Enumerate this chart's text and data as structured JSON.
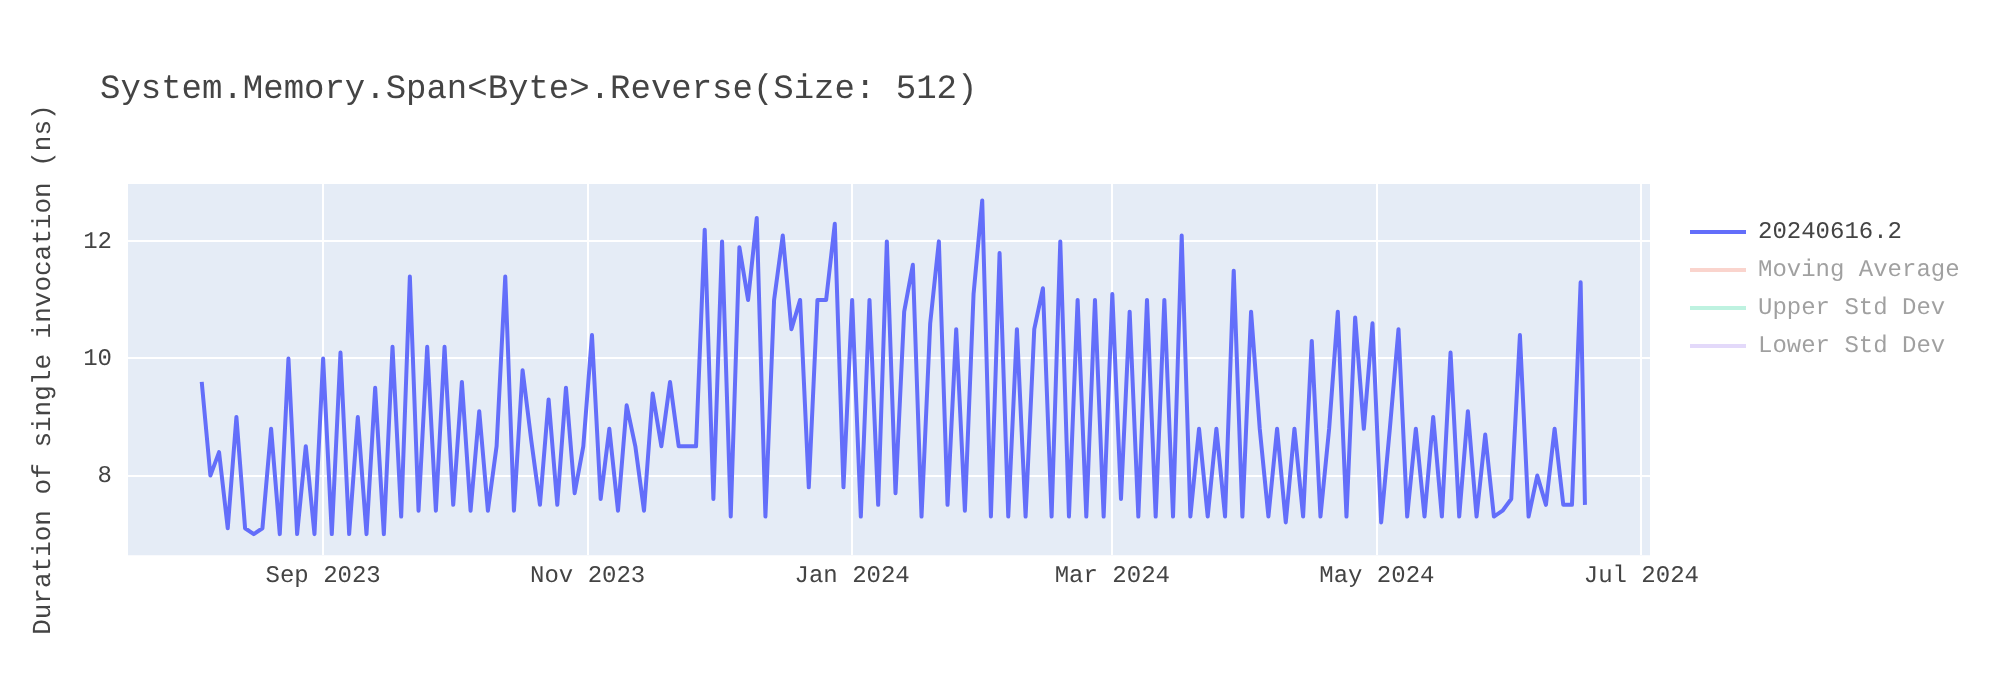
{
  "chart_data": {
    "type": "line",
    "title": "System.Memory.Span<Byte>.Reverse(Size: 512)",
    "ylabel": "Duration of single invocation (ns)",
    "xlim": [
      "2023-07-18",
      "2024-07-03"
    ],
    "xticks": [
      {
        "value": "2023-09-01",
        "label": "Sep 2023"
      },
      {
        "value": "2023-11-01",
        "label": "Nov 2023"
      },
      {
        "value": "2024-01-01",
        "label": "Jan 2024"
      },
      {
        "value": "2024-03-01",
        "label": "Mar 2024"
      },
      {
        "value": "2024-05-01",
        "label": "May 2024"
      },
      {
        "value": "2024-07-01",
        "label": "Jul 2024"
      }
    ],
    "ylim": [
      6.64,
      12.98
    ],
    "yticks": [
      8,
      10,
      12
    ],
    "grid": true,
    "legend": "top right",
    "marker": "none",
    "line_style": "solid",
    "series": [
      {
        "name": "20240616.2",
        "color": "#636efa",
        "x": [
          "2023-08-04",
          "2023-08-06",
          "2023-08-08",
          "2023-08-10",
          "2023-08-12",
          "2023-08-14",
          "2023-08-16",
          "2023-08-18",
          "2023-08-20",
          "2023-08-22",
          "2023-08-24",
          "2023-08-26",
          "2023-08-28",
          "2023-08-30",
          "2023-09-01",
          "2023-09-03",
          "2023-09-05",
          "2023-09-07",
          "2023-09-09",
          "2023-09-11",
          "2023-09-13",
          "2023-09-15",
          "2023-09-17",
          "2023-09-19",
          "2023-09-21",
          "2023-09-23",
          "2023-09-25",
          "2023-09-27",
          "2023-09-29",
          "2023-10-01",
          "2023-10-03",
          "2023-10-05",
          "2023-10-07",
          "2023-10-09",
          "2023-10-11",
          "2023-10-13",
          "2023-10-15",
          "2023-10-17",
          "2023-10-19",
          "2023-10-21",
          "2023-10-23",
          "2023-10-25",
          "2023-10-27",
          "2023-10-29",
          "2023-10-31",
          "2023-11-02",
          "2023-11-04",
          "2023-11-06",
          "2023-11-08",
          "2023-11-10",
          "2023-11-12",
          "2023-11-14",
          "2023-11-16",
          "2023-11-18",
          "2023-11-20",
          "2023-11-22",
          "2023-11-24",
          "2023-11-26",
          "2023-11-28",
          "2023-11-30",
          "2023-12-02",
          "2023-12-04",
          "2023-12-06",
          "2023-12-08",
          "2023-12-10",
          "2023-12-12",
          "2023-12-14",
          "2023-12-16",
          "2023-12-18",
          "2023-12-20",
          "2023-12-22",
          "2023-12-24",
          "2023-12-26",
          "2023-12-28",
          "2023-12-30",
          "2024-01-01",
          "2024-01-03",
          "2024-01-05",
          "2024-01-07",
          "2024-01-09",
          "2024-01-11",
          "2024-01-13",
          "2024-01-15",
          "2024-01-17",
          "2024-01-19",
          "2024-01-21",
          "2024-01-23",
          "2024-01-25",
          "2024-01-27",
          "2024-01-29",
          "2024-01-31",
          "2024-02-02",
          "2024-02-04",
          "2024-02-06",
          "2024-02-08",
          "2024-02-10",
          "2024-02-12",
          "2024-02-14",
          "2024-02-16",
          "2024-02-18",
          "2024-02-20",
          "2024-02-22",
          "2024-02-24",
          "2024-02-26",
          "2024-02-28",
          "2024-03-01",
          "2024-03-03",
          "2024-03-05",
          "2024-03-07",
          "2024-03-09",
          "2024-03-11",
          "2024-03-13",
          "2024-03-15",
          "2024-03-17",
          "2024-03-19",
          "2024-03-21",
          "2024-03-23",
          "2024-03-25",
          "2024-03-27",
          "2024-03-29",
          "2024-03-31",
          "2024-04-02",
          "2024-04-04",
          "2024-04-06",
          "2024-04-08",
          "2024-04-10",
          "2024-04-12",
          "2024-04-14",
          "2024-04-16",
          "2024-04-18",
          "2024-04-20",
          "2024-04-22",
          "2024-04-24",
          "2024-04-26",
          "2024-04-28",
          "2024-04-30",
          "2024-05-02",
          "2024-05-04",
          "2024-05-06",
          "2024-05-08",
          "2024-05-10",
          "2024-05-12",
          "2024-05-14",
          "2024-05-16",
          "2024-05-18",
          "2024-05-20",
          "2024-05-22",
          "2024-05-24",
          "2024-05-26",
          "2024-05-28",
          "2024-05-30",
          "2024-06-01",
          "2024-06-03",
          "2024-06-05",
          "2024-06-07",
          "2024-06-09",
          "2024-06-11",
          "2024-06-13",
          "2024-06-15",
          "2024-06-17",
          "2024-06-18"
        ],
        "values": [
          9.6,
          8.0,
          8.4,
          7.1,
          9.0,
          7.1,
          7.0,
          7.1,
          8.8,
          7.0,
          10.0,
          7.0,
          8.5,
          7.0,
          10.0,
          7.0,
          10.1,
          7.0,
          9.0,
          7.0,
          9.5,
          7.0,
          10.2,
          7.3,
          11.4,
          7.4,
          10.2,
          7.4,
          10.2,
          7.5,
          9.6,
          7.4,
          9.1,
          7.4,
          8.5,
          11.4,
          7.4,
          9.8,
          8.6,
          7.5,
          9.3,
          7.5,
          9.5,
          7.7,
          8.5,
          10.4,
          7.6,
          8.8,
          7.4,
          9.2,
          8.5,
          7.4,
          9.4,
          8.5,
          9.6,
          8.5,
          8.5,
          8.5,
          12.2,
          7.6,
          12.0,
          7.3,
          11.9,
          11.0,
          12.4,
          7.3,
          11.0,
          12.1,
          10.5,
          11.0,
          7.8,
          11.0,
          11.0,
          12.3,
          7.8,
          11.0,
          7.3,
          11.0,
          7.5,
          12.0,
          7.7,
          10.8,
          11.6,
          7.3,
          10.6,
          12.0,
          7.5,
          10.5,
          7.4,
          11.1,
          12.7,
          7.3,
          11.8,
          7.3,
          10.5,
          7.3,
          10.5,
          11.2,
          7.3,
          12.0,
          7.3,
          11.0,
          7.3,
          11.0,
          7.3,
          11.1,
          7.6,
          10.8,
          7.3,
          11.0,
          7.3,
          11.0,
          7.3,
          12.1,
          7.3,
          8.8,
          7.3,
          8.8,
          7.3,
          11.5,
          7.3,
          10.8,
          8.8,
          7.3,
          8.8,
          7.2,
          8.8,
          7.3,
          10.3,
          7.3,
          8.8,
          10.8,
          7.3,
          10.7,
          8.8,
          10.6,
          7.2,
          8.8,
          10.5,
          7.3,
          8.8,
          7.3,
          9.0,
          7.3,
          10.1,
          7.3,
          9.1,
          7.3,
          8.7,
          7.3,
          7.4,
          7.6,
          10.4,
          7.3,
          8.0,
          7.5,
          8.8,
          7.5,
          7.5,
          11.3,
          7.5
        ]
      },
      {
        "name": "Moving Average",
        "color": "#f6ab9d"
      },
      {
        "name": "Upper Std Dev",
        "color": "#7fe6c3"
      },
      {
        "name": "Lower Std Dev",
        "color": "#c9b4f7"
      }
    ]
  }
}
